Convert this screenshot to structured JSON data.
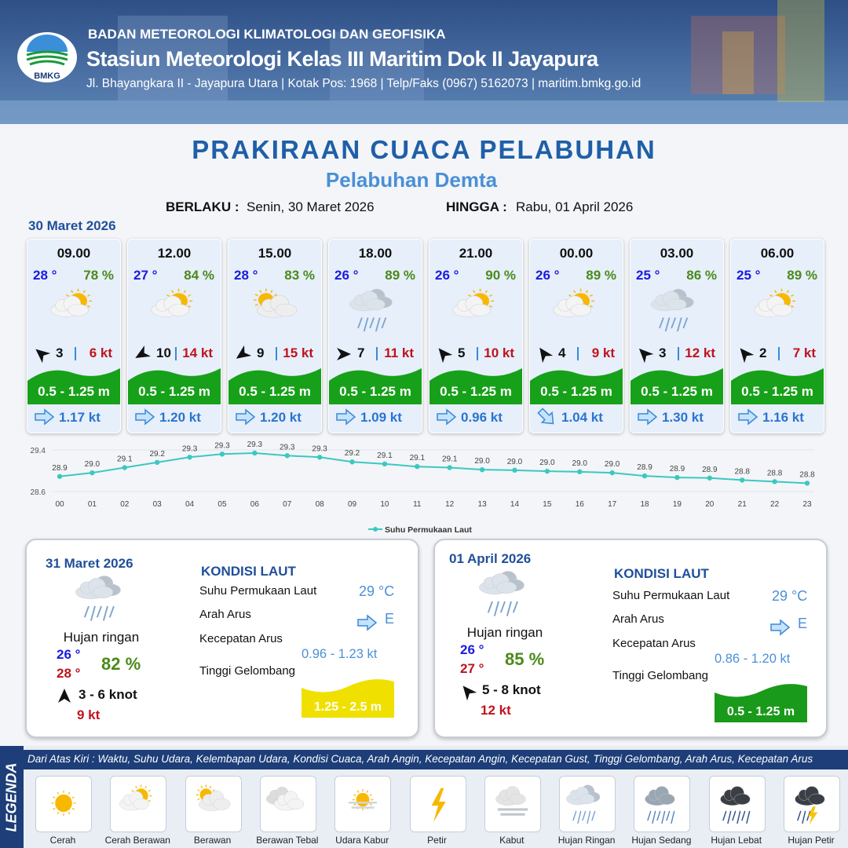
{
  "header": {
    "logo_text": "BMKG",
    "organization": "BADAN METEOROLOGI KLIMATOLOGI DAN GEOFISIKA",
    "station": "Stasiun Meteorologi Kelas III Maritim Dok II Jayapura",
    "address": "Jl. Bhayangkara II - Jayapura Utara | Kotak Pos: 1968 | Telp/Faks (0967) 5162073 | maritim.bmkg.go.id"
  },
  "title": "PRAKIRAAN CUACA PELABUHAN",
  "subtitle": "Pelabuhan Demta",
  "validity": {
    "from_label": "BERLAKU :",
    "from": "Senin, 30 Maret 2026",
    "to_label": "HINGGA :",
    "to": "Rabu, 01 April 2026"
  },
  "today": {
    "date": "30 Maret 2026",
    "forecasts": [
      {
        "time": "09.00",
        "temperature": "28 °",
        "humidity": "78 %",
        "wind_speed": "3",
        "gust": "6 kt",
        "wave": "0.5 - 1.25 m",
        "current": "1.17 kt"
      },
      {
        "time": "12.00",
        "temperature": "27 °",
        "humidity": "84 %",
        "wind_speed": "10",
        "gust": "14 kt",
        "wave": "0.5 - 1.25 m",
        "current": "1.20 kt"
      },
      {
        "time": "15.00",
        "temperature": "28 °",
        "humidity": "83 %",
        "wind_speed": "9",
        "gust": "15 kt",
        "wave": "0.5 - 1.25 m",
        "current": "1.20 kt"
      },
      {
        "time": "18.00",
        "temperature": "26 °",
        "humidity": "89 %",
        "wind_speed": "7",
        "gust": "11 kt",
        "wave": "0.5 - 1.25 m",
        "current": "1.09 kt"
      },
      {
        "time": "21.00",
        "temperature": "26 °",
        "humidity": "90 %",
        "wind_speed": "5",
        "gust": "10 kt",
        "wave": "0.5 - 1.25 m",
        "current": "0.96 kt"
      },
      {
        "time": "00.00",
        "temperature": "26 °",
        "humidity": "89 %",
        "wind_speed": "4",
        "gust": "9 kt",
        "wave": "0.5 - 1.25 m",
        "current": "1.04 kt"
      },
      {
        "time": "03.00",
        "temperature": "25 °",
        "humidity": "86 %",
        "wind_speed": "3",
        "gust": "12 kt",
        "wave": "0.5 - 1.25 m",
        "current": "1.30 kt"
      },
      {
        "time": "06.00",
        "temperature": "25 °",
        "humidity": "89 %",
        "wind_speed": "2",
        "gust": "7 kt",
        "wave": "0.5 - 1.25 m",
        "current": "1.16 kt"
      }
    ]
  },
  "chart_data": {
    "type": "line",
    "categories": [
      "00",
      "01",
      "02",
      "03",
      "04",
      "05",
      "06",
      "07",
      "08",
      "09",
      "10",
      "11",
      "12",
      "13",
      "14",
      "15",
      "16",
      "17",
      "18",
      "19",
      "20",
      "21",
      "22",
      "23"
    ],
    "series": [
      {
        "name": "Suhu Permukaan Laut",
        "color": "#3cc8c0",
        "values": [
          28.89,
          28.96,
          29.06,
          29.16,
          29.26,
          29.32,
          29.34,
          29.29,
          29.26,
          29.17,
          29.13,
          29.08,
          29.06,
          29.02,
          29.01,
          28.99,
          28.98,
          28.96,
          28.9,
          28.87,
          28.86,
          28.82,
          28.79,
          28.76
        ],
        "value_labels": [
          "28.9",
          "29.0",
          "29.1",
          "29.2",
          "29.3",
          "29.3",
          "29.3",
          "29.3",
          "29.3",
          "29.2",
          "29.1",
          "29.1",
          "29.1",
          "29.0",
          "29.0",
          "29.0",
          "29.0",
          "29.0",
          "28.9",
          "28.9",
          "28.9",
          "28.8",
          "28.8",
          "28.8"
        ]
      }
    ],
    "ylim": [
      28.6,
      29.4
    ],
    "yticks": [
      28.6,
      29.4
    ],
    "grid": true,
    "legend": "bottom"
  },
  "days": [
    {
      "date": "31 Maret 2026",
      "condition": "Hujan ringan",
      "temp_min": "26 °",
      "temp_max": "28 °",
      "humidity": "82 %",
      "wind": "3  - 6 knot",
      "gust": "9 kt",
      "sea": {
        "title": "KONDISI LAUT",
        "sst_label": "Suhu Permukaan Laut",
        "sst": "29 °C",
        "direction_label": "Arah Arus",
        "direction": "E",
        "speed_label": "Kecepatan Arus",
        "speed": "0.96 -  1.23 kt",
        "wave_label": "Tinggi Gelombang",
        "wave": "1.25 - 2.5 m"
      }
    },
    {
      "date": "01 April 2026",
      "condition": "Hujan ringan",
      "temp_min": "26 °",
      "temp_max": "27 °",
      "humidity": "85 %",
      "wind": "5  - 8 knot",
      "gust": "12 kt",
      "sea": {
        "title": "KONDISI LAUT",
        "sst_label": "Suhu Permukaan Laut",
        "sst": "29 °C",
        "direction_label": "Arah Arus",
        "direction": "E",
        "speed_label": "Kecepatan Arus",
        "speed": "0.86 -  1.20 kt",
        "wave_label": "Tinggi Gelombang",
        "wave": "0.5 - 1.25 m"
      }
    }
  ],
  "legend": {
    "title": "LEGENDA",
    "description": "Dari Atas Kiri : Waktu, Suhu Udara, Kelembapan Udara, Kondisi Cuaca, Arah Angin, Kecepatan Angin, Kecepatan Gust, Tinggi Gelombang, Arah Arus, Kecepatan Arus",
    "items": [
      "Cerah",
      "Cerah Berawan",
      "Berawan",
      "Berawan Tebal",
      "Udara Kabur",
      "Petir",
      "Kabut",
      "Hujan Ringan",
      "Hujan Sedang",
      "Hujan Lebat",
      "Hujan Petir"
    ]
  }
}
